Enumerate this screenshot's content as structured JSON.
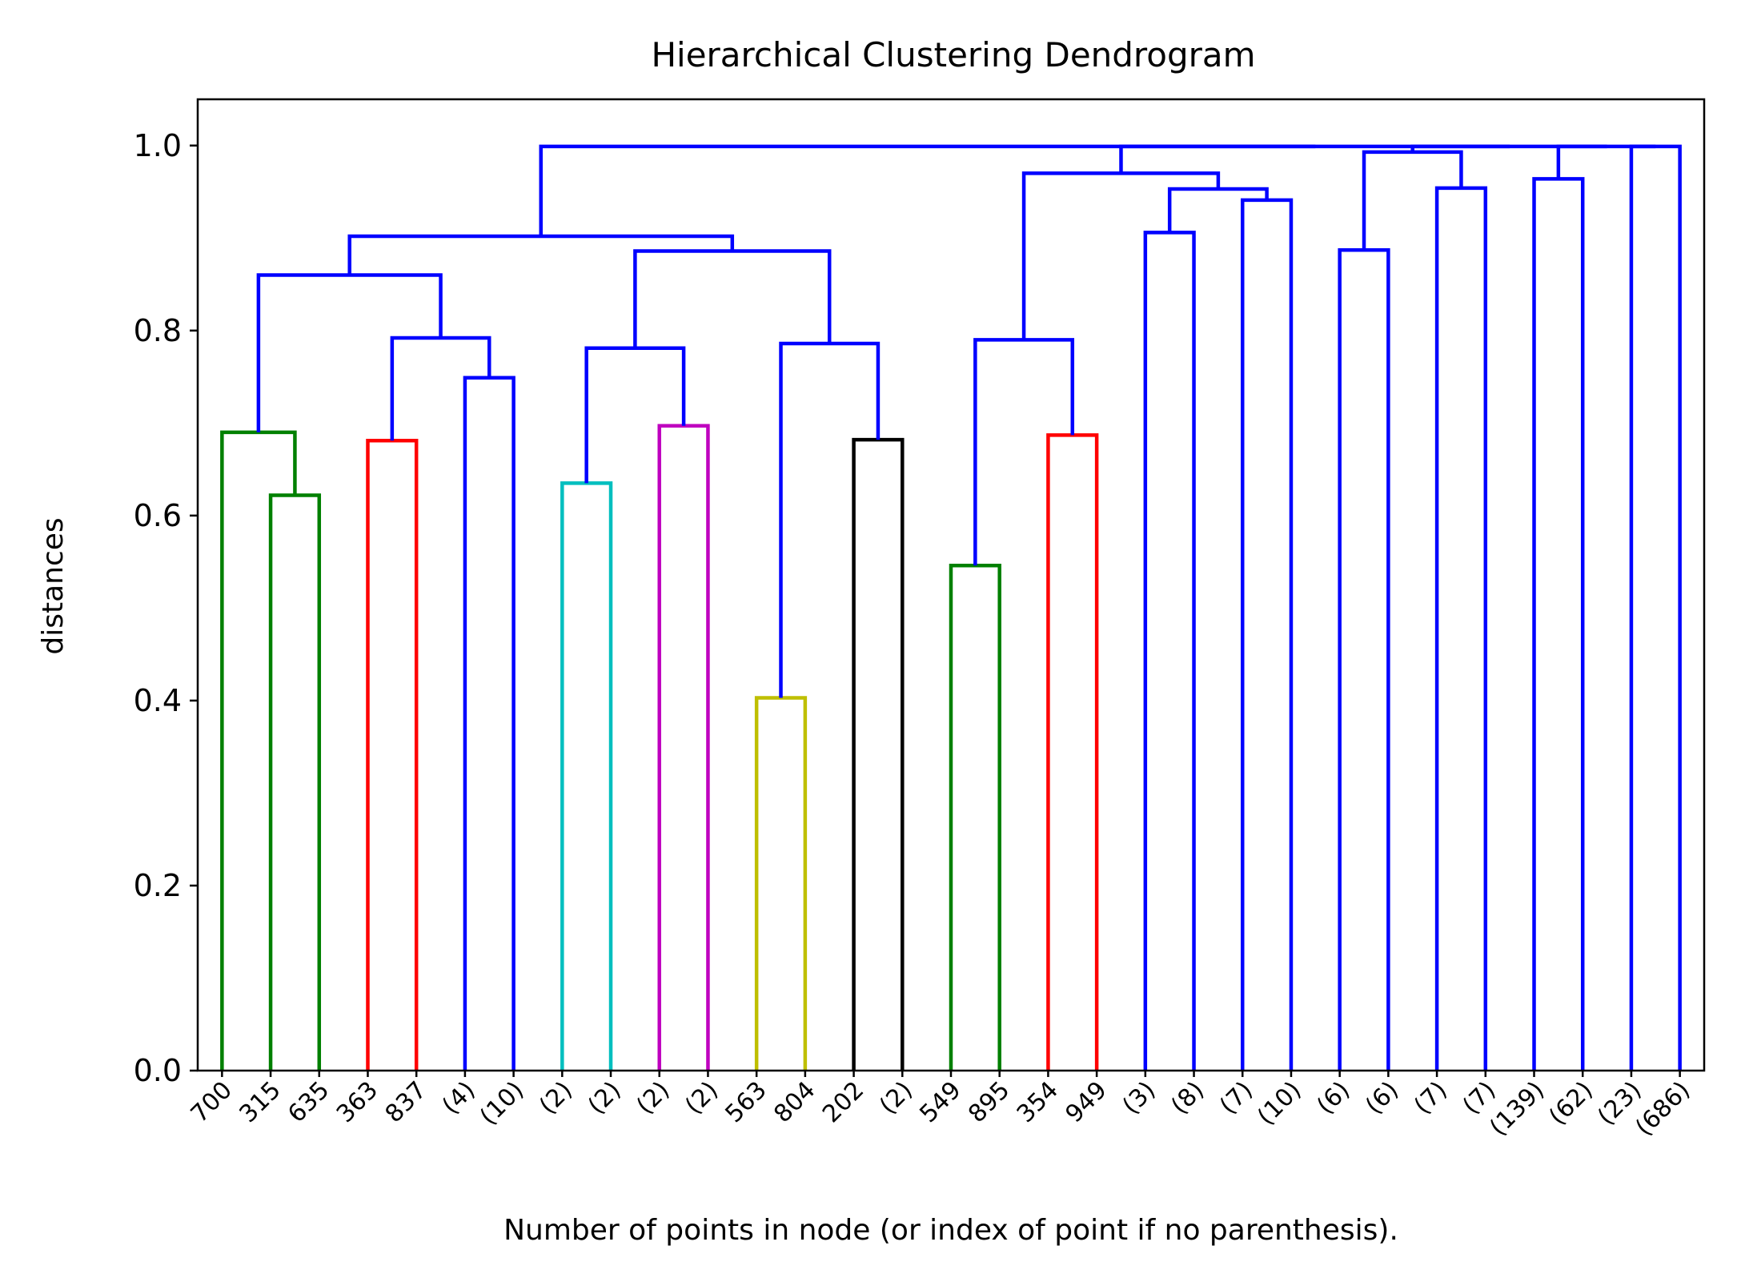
{
  "chart_data": {
    "type": "dendrogram",
    "title": "Hierarchical Clustering Dendrogram",
    "xlabel": "Number of points in node (or index of point if no parenthesis).",
    "ylabel": "distances",
    "ylim": [
      0,
      1.05
    ],
    "yticks": [
      "0.0",
      "0.2",
      "0.4",
      "0.6",
      "0.8",
      "1.0"
    ],
    "grid": false,
    "leaves": [
      "700",
      "315",
      "635",
      "363",
      "837",
      "(4)",
      "(10)",
      "(2)",
      "(2)",
      "(2)",
      "(2)",
      "563",
      "804",
      "202",
      "(2)",
      "549",
      "895",
      "354",
      "949",
      "(3)",
      "(8)",
      "(7)",
      "(10)",
      "(6)",
      "(6)",
      "(7)",
      "(7)",
      "(139)",
      "(62)",
      "(23)",
      "(686)"
    ],
    "colors": {
      "green": "#008000",
      "red": "#ff0000",
      "blue": "#0000ff",
      "cyan": "#00bfbf",
      "magenta": "#bf00bf",
      "olive": "#bfbf00",
      "black": "#000000"
    },
    "links": [
      {
        "left": 1,
        "right": 2,
        "height": 0.622,
        "color": "green"
      },
      {
        "left": 0,
        "right": 1.5,
        "height": 0.69,
        "color": "green"
      },
      {
        "left": 3,
        "right": 4,
        "height": 0.681,
        "color": "red"
      },
      {
        "left": 5,
        "right": 6,
        "height": 0.749,
        "color": "blue"
      },
      {
        "left": 3.5,
        "right": 5.5,
        "height": 0.792,
        "color": "blue"
      },
      {
        "left": 0.75,
        "right": 4.5,
        "height": 0.86,
        "color": "blue"
      },
      {
        "left": 7,
        "right": 8,
        "height": 0.635,
        "color": "cyan"
      },
      {
        "left": 9,
        "right": 10,
        "height": 0.697,
        "color": "magenta"
      },
      {
        "left": 7.5,
        "right": 9.5,
        "height": 0.781,
        "color": "blue"
      },
      {
        "left": 11,
        "right": 12,
        "height": 0.403,
        "color": "olive"
      },
      {
        "left": 13,
        "right": 14,
        "height": 0.682,
        "color": "black"
      },
      {
        "left": 11.5,
        "right": 13.5,
        "height": 0.786,
        "color": "blue"
      },
      {
        "left": 8.5,
        "right": 12.5,
        "height": 0.886,
        "color": "blue"
      },
      {
        "left": 2.625,
        "right": 10.5,
        "height": 0.902,
        "color": "blue"
      },
      {
        "left": 15,
        "right": 16,
        "height": 0.546,
        "color": "green"
      },
      {
        "left": 17,
        "right": 18,
        "height": 0.687,
        "color": "red"
      },
      {
        "left": 15.5,
        "right": 17.5,
        "height": 0.79,
        "color": "blue"
      },
      {
        "left": 19,
        "right": 20,
        "height": 0.906,
        "color": "blue"
      },
      {
        "left": 21,
        "right": 22,
        "height": 0.941,
        "color": "blue"
      },
      {
        "left": 19.5,
        "right": 21.5,
        "height": 0.953,
        "color": "blue"
      },
      {
        "left": 16.5,
        "right": 20.5,
        "height": 0.97,
        "color": "blue"
      },
      {
        "left": 23,
        "right": 24,
        "height": 0.887,
        "color": "blue"
      },
      {
        "left": 25,
        "right": 26,
        "height": 0.954,
        "color": "blue"
      },
      {
        "left": 23.5,
        "right": 25.5,
        "height": 0.993,
        "color": "blue"
      },
      {
        "left": 27,
        "right": 28,
        "height": 0.964,
        "color": "blue"
      },
      {
        "left": 29,
        "right": 30,
        "height": 0.999,
        "color": "blue"
      },
      {
        "left": 27.5,
        "right": 29.5,
        "height": 0.999,
        "color": "blue"
      },
      {
        "left": 24.5,
        "right": 28.5,
        "height": 0.999,
        "color": "blue"
      },
      {
        "left": 18.5,
        "right": 26.5,
        "height": 0.999,
        "color": "blue"
      },
      {
        "left": 6.5625,
        "right": 22.5,
        "height": 0.999,
        "color": "blue"
      }
    ]
  }
}
